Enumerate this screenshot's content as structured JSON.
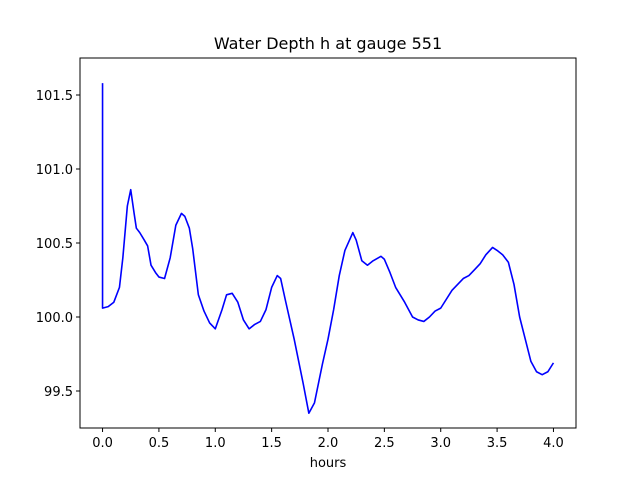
{
  "chart_data": {
    "type": "line",
    "title": "Water Depth h at gauge 551",
    "xlabel": "hours",
    "ylabel": "",
    "xlim": [
      -0.2,
      4.2
    ],
    "ylim": [
      99.25,
      101.75
    ],
    "xticks": [
      0.0,
      0.5,
      1.0,
      1.5,
      2.0,
      2.5,
      3.0,
      3.5,
      4.0
    ],
    "xtick_labels": [
      "0.0",
      "0.5",
      "1.0",
      "1.5",
      "2.0",
      "2.5",
      "3.0",
      "3.5",
      "4.0"
    ],
    "yticks": [
      99.5,
      100.0,
      100.5,
      101.0,
      101.5
    ],
    "ytick_labels": [
      "99.5",
      "100.0",
      "100.5",
      "101.0",
      "101.5"
    ],
    "grid": false,
    "series": [
      {
        "color": "#0000ff",
        "x": [
          0.0,
          0.0,
          0.0,
          0.05,
          0.1,
          0.15,
          0.18,
          0.22,
          0.25,
          0.28,
          0.3,
          0.33,
          0.37,
          0.4,
          0.43,
          0.47,
          0.5,
          0.55,
          0.6,
          0.65,
          0.7,
          0.73,
          0.77,
          0.8,
          0.85,
          0.9,
          0.95,
          1.0,
          1.06,
          1.1,
          1.15,
          1.2,
          1.25,
          1.3,
          1.35,
          1.4,
          1.45,
          1.5,
          1.55,
          1.58,
          1.62,
          1.7,
          1.78,
          1.83,
          1.88,
          1.95,
          2.0,
          2.05,
          2.1,
          2.15,
          2.22,
          2.25,
          2.3,
          2.35,
          2.4,
          2.47,
          2.5,
          2.55,
          2.6,
          2.68,
          2.75,
          2.8,
          2.85,
          2.9,
          2.95,
          3.0,
          3.1,
          3.2,
          3.25,
          3.3,
          3.35,
          3.4,
          3.46,
          3.5,
          3.55,
          3.6,
          3.65,
          3.7,
          3.75,
          3.8,
          3.85,
          3.9,
          3.95,
          4.0
        ],
        "values": [
          101.58,
          100.06,
          100.06,
          100.07,
          100.1,
          100.2,
          100.4,
          100.75,
          100.86,
          100.7,
          100.6,
          100.57,
          100.52,
          100.48,
          100.35,
          100.3,
          100.27,
          100.26,
          100.4,
          100.62,
          100.7,
          100.68,
          100.6,
          100.46,
          100.15,
          100.04,
          99.96,
          99.92,
          100.05,
          100.15,
          100.16,
          100.1,
          99.98,
          99.92,
          99.95,
          99.97,
          100.05,
          100.2,
          100.28,
          100.26,
          100.12,
          99.85,
          99.55,
          99.35,
          99.42,
          99.68,
          99.85,
          100.05,
          100.28,
          100.45,
          100.57,
          100.52,
          100.38,
          100.35,
          100.38,
          100.41,
          100.39,
          100.3,
          100.2,
          100.1,
          100.0,
          99.98,
          99.97,
          100.0,
          100.04,
          100.06,
          100.18,
          100.26,
          100.28,
          100.32,
          100.36,
          100.42,
          100.47,
          100.45,
          100.42,
          100.37,
          100.22,
          100.0,
          99.85,
          99.7,
          99.63,
          99.61,
          99.63,
          99.69
        ]
      }
    ]
  }
}
